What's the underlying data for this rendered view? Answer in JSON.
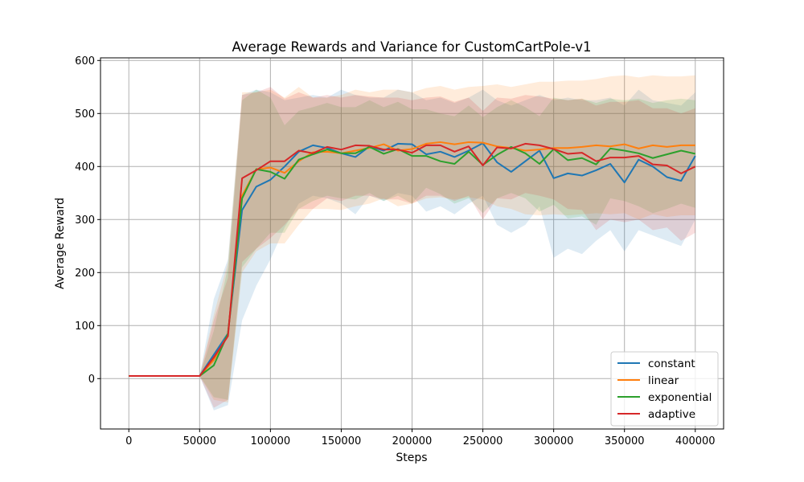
{
  "chart_data": {
    "type": "line",
    "title": "Average Rewards and Variance for CustomCartPole-v1",
    "xlabel": "Steps",
    "ylabel": "Average Reward",
    "xlim": [
      -20000,
      420000
    ],
    "ylim": [
      -95,
      605
    ],
    "xticks": [
      0,
      50000,
      100000,
      150000,
      200000,
      250000,
      300000,
      350000,
      400000
    ],
    "xtick_labels": [
      "0",
      "50000",
      "100000",
      "150000",
      "200000",
      "250000",
      "300000",
      "350000",
      "400000"
    ],
    "yticks": [
      0,
      100,
      200,
      300,
      400,
      500,
      600
    ],
    "ytick_labels": [
      "0",
      "100",
      "200",
      "300",
      "400",
      "500",
      "600"
    ],
    "grid": true,
    "legend_position": "lower-right",
    "x": [
      0,
      10000,
      20000,
      30000,
      40000,
      50000,
      60000,
      70000,
      80000,
      90000,
      100000,
      110000,
      120000,
      130000,
      140000,
      150000,
      160000,
      170000,
      180000,
      190000,
      200000,
      210000,
      220000,
      230000,
      240000,
      250000,
      260000,
      270000,
      280000,
      290000,
      300000,
      310000,
      320000,
      330000,
      340000,
      350000,
      360000,
      370000,
      380000,
      390000,
      400000
    ],
    "series": [
      {
        "name": "constant",
        "color": "#1f77b4",
        "values": [
          5,
          5,
          5,
          5,
          5,
          5,
          45,
          85,
          318,
          362,
          375,
          400,
          428,
          440,
          435,
          425,
          418,
          438,
          430,
          443,
          442,
          423,
          428,
          418,
          430,
          444,
          408,
          390,
          410,
          430,
          378,
          387,
          383,
          393,
          405,
          370,
          413,
          400,
          380,
          373,
          420
        ],
        "upper": [
          5,
          5,
          5,
          5,
          5,
          5,
          150,
          225,
          535,
          545,
          540,
          525,
          530,
          535,
          530,
          545,
          535,
          530,
          530,
          545,
          540,
          525,
          530,
          520,
          530,
          545,
          525,
          515,
          525,
          535,
          525,
          530,
          525,
          525,
          530,
          515,
          545,
          525,
          520,
          515,
          540
        ],
        "lower": [
          5,
          5,
          5,
          5,
          5,
          5,
          -60,
          -50,
          110,
          175,
          225,
          285,
          330,
          345,
          340,
          330,
          310,
          345,
          335,
          350,
          345,
          315,
          325,
          310,
          330,
          345,
          290,
          275,
          290,
          325,
          228,
          245,
          235,
          260,
          280,
          240,
          280,
          270,
          260,
          250,
          300
        ]
      },
      {
        "name": "linear",
        "color": "#ff7f0e",
        "values": [
          5,
          5,
          5,
          5,
          5,
          5,
          35,
          83,
          345,
          395,
          398,
          388,
          410,
          427,
          428,
          425,
          430,
          435,
          442,
          430,
          433,
          443,
          446,
          442,
          446,
          445,
          438,
          435,
          430,
          432,
          435,
          435,
          437,
          440,
          438,
          442,
          434,
          440,
          437,
          440,
          440
        ],
        "upper": [
          5,
          5,
          5,
          5,
          5,
          5,
          120,
          220,
          540,
          540,
          545,
          530,
          550,
          530,
          530,
          535,
          545,
          540,
          545,
          545,
          540,
          548,
          552,
          545,
          550,
          552,
          555,
          550,
          555,
          560,
          560,
          562,
          562,
          565,
          570,
          572,
          568,
          572,
          570,
          570,
          572
        ],
        "lower": [
          5,
          5,
          5,
          5,
          5,
          5,
          -40,
          -45,
          200,
          240,
          255,
          255,
          290,
          320,
          320,
          318,
          325,
          330,
          340,
          325,
          330,
          340,
          342,
          338,
          342,
          338,
          325,
          320,
          310,
          308,
          310,
          308,
          310,
          312,
          310,
          312,
          300,
          310,
          305,
          308,
          308
        ]
      },
      {
        "name": "exponential",
        "color": "#2ca02c",
        "values": [
          5,
          5,
          5,
          5,
          5,
          5,
          25,
          85,
          340,
          395,
          390,
          377,
          413,
          423,
          432,
          425,
          425,
          437,
          424,
          433,
          420,
          420,
          410,
          405,
          428,
          403,
          422,
          437,
          425,
          405,
          433,
          412,
          416,
          404,
          434,
          430,
          425,
          416,
          423,
          430,
          424
        ],
        "upper": [
          5,
          5,
          5,
          5,
          5,
          5,
          90,
          210,
          525,
          545,
          530,
          478,
          505,
          512,
          520,
          512,
          512,
          525,
          512,
          522,
          508,
          508,
          500,
          495,
          515,
          493,
          512,
          525,
          512,
          495,
          530,
          525,
          528,
          520,
          528,
          525,
          528,
          520,
          525,
          528,
          525
        ],
        "lower": [
          5,
          5,
          5,
          5,
          5,
          5,
          -35,
          -40,
          210,
          245,
          275,
          275,
          320,
          335,
          345,
          340,
          338,
          350,
          335,
          345,
          330,
          360,
          348,
          330,
          340,
          312,
          340,
          350,
          340,
          315,
          328,
          302,
          306,
          290,
          340,
          335,
          325,
          312,
          320,
          330,
          322
        ]
      },
      {
        "name": "adaptive",
        "color": "#d62728",
        "values": [
          5,
          5,
          5,
          5,
          5,
          5,
          40,
          80,
          378,
          393,
          410,
          410,
          430,
          425,
          437,
          432,
          440,
          439,
          432,
          432,
          426,
          440,
          440,
          428,
          438,
          402,
          436,
          434,
          443,
          440,
          433,
          424,
          426,
          410,
          417,
          417,
          420,
          404,
          402,
          387,
          400
        ],
        "upper": [
          5,
          5,
          5,
          5,
          5,
          5,
          110,
          190,
          535,
          540,
          550,
          528,
          540,
          530,
          535,
          530,
          535,
          532,
          530,
          530,
          525,
          530,
          532,
          522,
          530,
          505,
          530,
          528,
          535,
          532,
          528,
          525,
          528,
          515,
          522,
          522,
          525,
          510,
          510,
          500,
          510
        ],
        "lower": [
          5,
          5,
          5,
          5,
          5,
          5,
          -55,
          -40,
          220,
          245,
          265,
          290,
          320,
          320,
          340,
          335,
          345,
          345,
          338,
          338,
          330,
          345,
          345,
          335,
          345,
          300,
          340,
          338,
          350,
          345,
          338,
          320,
          318,
          280,
          300,
          295,
          300,
          280,
          285,
          260,
          275
        ]
      }
    ]
  }
}
